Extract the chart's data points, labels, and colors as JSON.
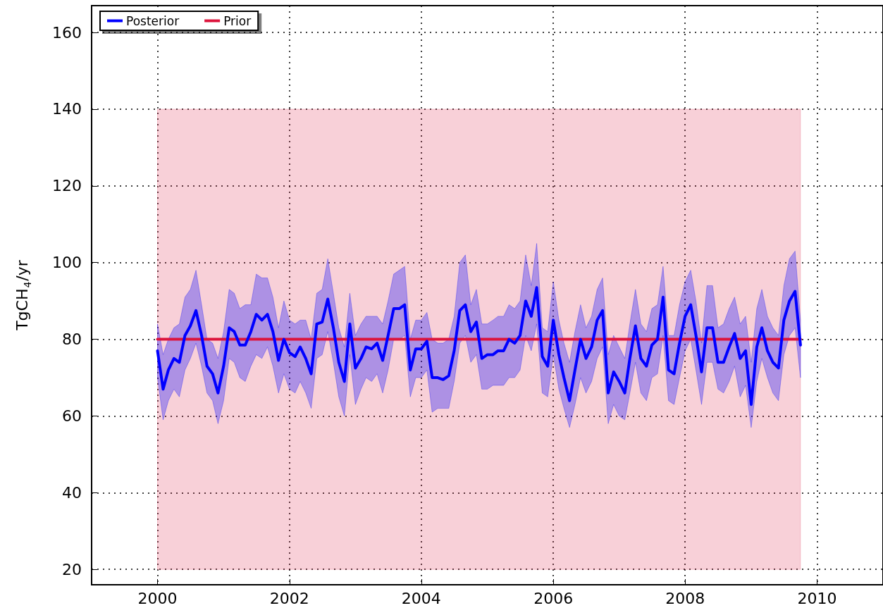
{
  "chart_data": {
    "type": "line",
    "ylabel": "TgCH$_{4}$/yr",
    "xlim": [
      "1999",
      "2011"
    ],
    "xticks": [
      "2000",
      "2002",
      "2004",
      "2006",
      "2008",
      "2010"
    ],
    "ylim": [
      16,
      167
    ],
    "yticks": [
      20,
      40,
      60,
      80,
      100,
      120,
      140,
      160
    ],
    "grid": true,
    "legend": "top left",
    "marker": "none",
    "line_style": "solid",
    "x": [
      "2000-01",
      "2000-02",
      "2000-03",
      "2000-04",
      "2000-05",
      "2000-06",
      "2000-07",
      "2000-08",
      "2000-09",
      "2000-10",
      "2000-11",
      "2000-12",
      "2001-01",
      "2001-02",
      "2001-03",
      "2001-04",
      "2001-05",
      "2001-06",
      "2001-07",
      "2001-08",
      "2001-09",
      "2001-10",
      "2001-11",
      "2001-12",
      "2002-01",
      "2002-02",
      "2002-03",
      "2002-04",
      "2002-05",
      "2002-06",
      "2002-07",
      "2002-08",
      "2002-09",
      "2002-10",
      "2002-11",
      "2002-12",
      "2003-01",
      "2003-02",
      "2003-03",
      "2003-04",
      "2003-05",
      "2003-06",
      "2003-07",
      "2003-08",
      "2003-09",
      "2003-10",
      "2003-11",
      "2003-12",
      "2004-01",
      "2004-02",
      "2004-03",
      "2004-04",
      "2004-05",
      "2004-06",
      "2004-07",
      "2004-08",
      "2004-09",
      "2004-10",
      "2004-11",
      "2004-12",
      "2005-01",
      "2005-02",
      "2005-03",
      "2005-04",
      "2005-05",
      "2005-06",
      "2005-07",
      "2005-08",
      "2005-09",
      "2005-10",
      "2005-11",
      "2005-12",
      "2006-01",
      "2006-02",
      "2006-03",
      "2006-04",
      "2006-05",
      "2006-06",
      "2006-07",
      "2006-08",
      "2006-09",
      "2006-10",
      "2006-11",
      "2006-12",
      "2007-01",
      "2007-02",
      "2007-03",
      "2007-04",
      "2007-05",
      "2007-06",
      "2007-07",
      "2007-08",
      "2007-09",
      "2007-10",
      "2007-11",
      "2007-12",
      "2008-01",
      "2008-02",
      "2008-03",
      "2008-04",
      "2008-05",
      "2008-06",
      "2008-07",
      "2008-08",
      "2008-09",
      "2008-10",
      "2008-11",
      "2008-12",
      "2009-01",
      "2009-02",
      "2009-03",
      "2009-04",
      "2009-05",
      "2009-06",
      "2009-07",
      "2009-08",
      "2009-09",
      "2009-10"
    ],
    "series": [
      {
        "name": "Posterior",
        "color": "#0000ff",
        "values": [
          77,
          67,
          72,
          75,
          74,
          81,
          83.5,
          87.5,
          81,
          73,
          71,
          66,
          73,
          83,
          82,
          78.5,
          78.5,
          82,
          86.5,
          85,
          86.5,
          82,
          74.5,
          80,
          76.5,
          75.5,
          78,
          75,
          71,
          84,
          84.5,
          90.5,
          83,
          74,
          69,
          84,
          72.5,
          75,
          78,
          77.5,
          79,
          74.5,
          81,
          88,
          88,
          89,
          72,
          77.5,
          77.5,
          79.5,
          70,
          70,
          69.5,
          70.5,
          77,
          87.5,
          89,
          82,
          84.5,
          75,
          76,
          76,
          77,
          77,
          80,
          79,
          81,
          90,
          86,
          93.5,
          75.5,
          73,
          85,
          76,
          70,
          64,
          72,
          80,
          75,
          78,
          85,
          87.5,
          66,
          71.5,
          69,
          66,
          75,
          83.5,
          75,
          73,
          78.5,
          80,
          91,
          72,
          71,
          79,
          86,
          89,
          81,
          71.5,
          83,
          83,
          74,
          74,
          78,
          81.5,
          75,
          77,
          63,
          78,
          83,
          77,
          74,
          72.5,
          85,
          90,
          92.5,
          78.5
        ],
        "lower": [
          70,
          59,
          64,
          67,
          65,
          72,
          75,
          79,
          73,
          66,
          64,
          58,
          64,
          75,
          74,
          70,
          69,
          73,
          76,
          75,
          78,
          73,
          66,
          71,
          67,
          66,
          69,
          66,
          62,
          75,
          76,
          82,
          74,
          65,
          60,
          76,
          63,
          67,
          70,
          69,
          71,
          66,
          72,
          80,
          80,
          81,
          65,
          70,
          70,
          72,
          61,
          62,
          62,
          62,
          69,
          79,
          81,
          74,
          76,
          67,
          67,
          68,
          68,
          68,
          70,
          70,
          72,
          81,
          77,
          84,
          66,
          65,
          76,
          67,
          62,
          57,
          63,
          70,
          66,
          69,
          75,
          78,
          58,
          63,
          60,
          59,
          66,
          74,
          66,
          64,
          70,
          71,
          81,
          64,
          63,
          70,
          77,
          80,
          72,
          63,
          74,
          74,
          67,
          66,
          69,
          73,
          65,
          68,
          57,
          69,
          75,
          70,
          66,
          64,
          76,
          81,
          83,
          70
        ],
        "upper": [
          84,
          76,
          80,
          83,
          84,
          91,
          93,
          98,
          89,
          80,
          79,
          75,
          82,
          93,
          92,
          88,
          89,
          89,
          97,
          96,
          96,
          91,
          83,
          90,
          85,
          84,
          85,
          85,
          80,
          92,
          93,
          101,
          92,
          83,
          78,
          92,
          81,
          84,
          86,
          86,
          86,
          84,
          90,
          97,
          98,
          99,
          80,
          85,
          85,
          87,
          80,
          79,
          79,
          80,
          86,
          100,
          102,
          89,
          93,
          84,
          84,
          85,
          86,
          86,
          89,
          88,
          90,
          102,
          94,
          105,
          83,
          82,
          95,
          85,
          79,
          74,
          82,
          89,
          83,
          86,
          93,
          96,
          76,
          81,
          78,
          75,
          84,
          93,
          84,
          82,
          88,
          89,
          99,
          81,
          81,
          89,
          95,
          98,
          90,
          79,
          94,
          94,
          83,
          84,
          88,
          91,
          84,
          86,
          74,
          88,
          93,
          86,
          83,
          81,
          94,
          101,
          103,
          85
        ]
      },
      {
        "name": "Prior",
        "color": "#dc143c",
        "x": [
          "2000-01",
          "2009-10"
        ],
        "values": [
          80,
          80
        ],
        "lower": [
          20,
          20
        ],
        "upper": [
          140,
          140
        ]
      }
    ]
  }
}
